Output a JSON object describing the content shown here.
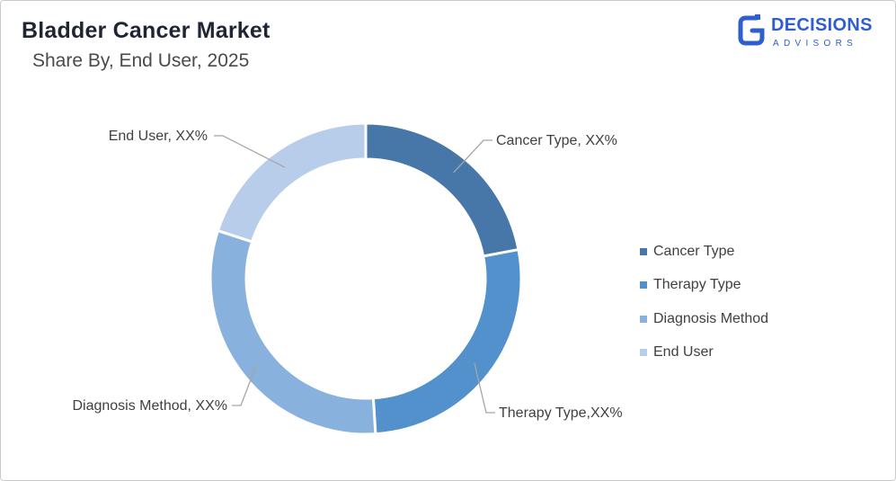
{
  "header": {
    "title": "Bladder Cancer Market",
    "subtitle": "Share By, End User, 2025"
  },
  "logo": {
    "word": "DECISIONS",
    "sub": "ADVISORS",
    "color": "#2f5fce"
  },
  "chart_data": {
    "type": "pie",
    "variant": "donut",
    "title": "Bladder Cancer Market",
    "subtitle": "Share By, End User, 2025",
    "categories": [
      "Cancer Type",
      "Therapy Type",
      "Diagnosis Method",
      "End User"
    ],
    "values": [
      22,
      27,
      31,
      20
    ],
    "colors": [
      "#4677a8",
      "#5391cd",
      "#89b1de",
      "#b7cde9"
    ],
    "data_labels": [
      "Cancer Type, XX%",
      "Therapy Type,XX%",
      "Diagnosis Method, XX%",
      "End User, XX%"
    ],
    "legend_position": "right"
  }
}
